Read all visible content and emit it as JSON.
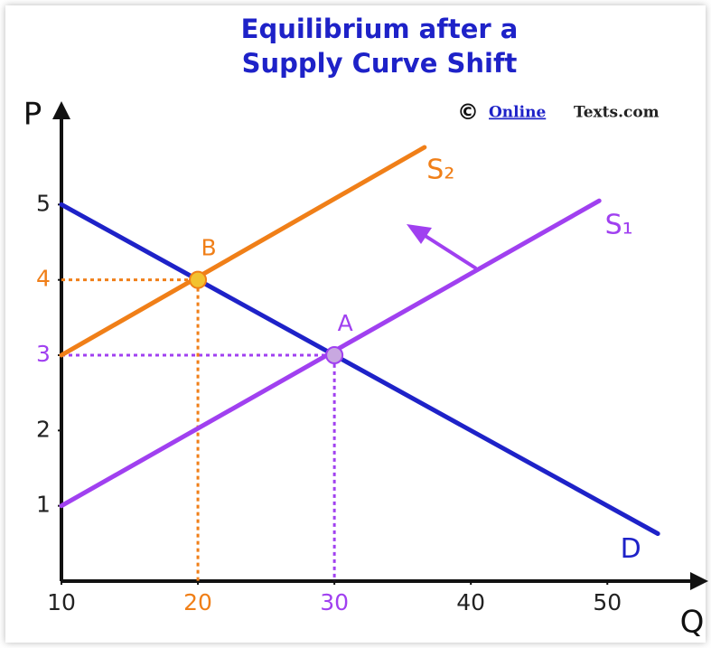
{
  "chart_data": {
    "type": "line",
    "title": [
      "Equilibrium after a",
      "Supply Curve Shift"
    ],
    "credit_symbol": "©",
    "credit": [
      "Online",
      "Texts.com"
    ],
    "xlabel": "Q",
    "ylabel": "P",
    "xlim": [
      10,
      57
    ],
    "ylim": [
      0,
      6.3
    ],
    "xticks": [
      10,
      20,
      30,
      40,
      50
    ],
    "yticks": [
      1,
      2,
      3,
      4,
      5
    ],
    "xtick_colors": [
      "#222222",
      "#f07f18",
      "#a040f0",
      "#222222",
      "#222222"
    ],
    "ytick_colors": [
      "#222222",
      "#222222",
      "#a040f0",
      "#f07f18",
      "#222222"
    ],
    "series": [
      {
        "name": "D",
        "color": "#1e22c8",
        "x": [
          10,
          53.7
        ],
        "values": [
          5,
          0.63
        ]
      },
      {
        "name": "S₁",
        "color": "#a040f0",
        "x": [
          10,
          49.4
        ],
        "values": [
          1,
          5.05
        ]
      },
      {
        "name": "S₂",
        "color": "#f07f18",
        "x": [
          10,
          36.6
        ],
        "values": [
          3,
          5.76
        ]
      }
    ],
    "points": [
      {
        "label": "A",
        "x": 30,
        "y": 3,
        "color": "#a040f0",
        "fill": "#c8a8e0"
      },
      {
        "label": "B",
        "x": 20,
        "y": 4,
        "color": "#f07f18",
        "fill": "#f2c230"
      }
    ]
  }
}
